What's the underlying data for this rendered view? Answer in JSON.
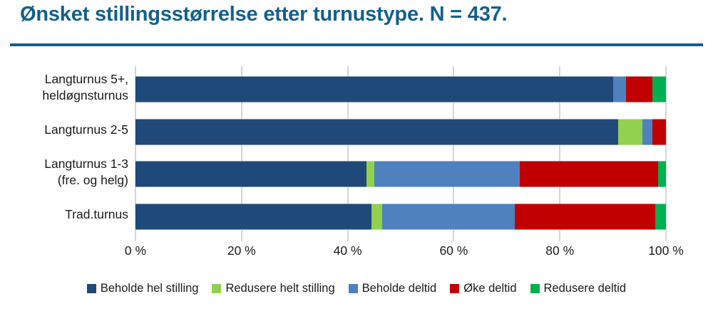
{
  "title": "Ønsket stillingsstørrelse etter turnustype. N = 437.",
  "colors": {
    "accent": "#14608C",
    "grid": "#ABABAB",
    "text": "#1A1A1A"
  },
  "chart_data": {
    "type": "bar",
    "orientation": "horizontal",
    "stacked": true,
    "title": "Ønsket stillingsstørrelse etter turnustype. N = 437.",
    "categories": [
      "Langturnus 5+, heldøgnsturnus",
      "Langturnus 2-5",
      "Langturnus 1-3 (fre. og helg)",
      "Trad.turnus"
    ],
    "category_lines": [
      [
        "Langturnus 5+,",
        "heldøgnsturnus"
      ],
      [
        "Langturnus 2-5"
      ],
      [
        "Langturnus 1-3",
        "(fre. og helg)"
      ],
      [
        "Trad.turnus"
      ]
    ],
    "series": [
      {
        "name": "Beholde hel stilling",
        "color": "#1F4978",
        "values": [
          90,
          91,
          43.5,
          44.5
        ]
      },
      {
        "name": "Redusere helt stilling",
        "color": "#92D050",
        "values": [
          0,
          4.5,
          1.5,
          2
        ]
      },
      {
        "name": "Beholde deltid",
        "color": "#4E81BD",
        "values": [
          2.5,
          2,
          27.5,
          25
        ]
      },
      {
        "name": "Øke deltid",
        "color": "#C00000",
        "values": [
          5,
          2.5,
          26,
          26.5
        ]
      },
      {
        "name": "Redusere deltid",
        "color": "#00B050",
        "values": [
          2.5,
          0,
          1.5,
          2
        ]
      }
    ],
    "xlim": [
      0,
      100
    ],
    "x_ticks": [
      "0 %",
      "20 %",
      "40 %",
      "60 %",
      "80 %",
      "100 %"
    ],
    "grid": true,
    "legend_position": "bottom"
  }
}
